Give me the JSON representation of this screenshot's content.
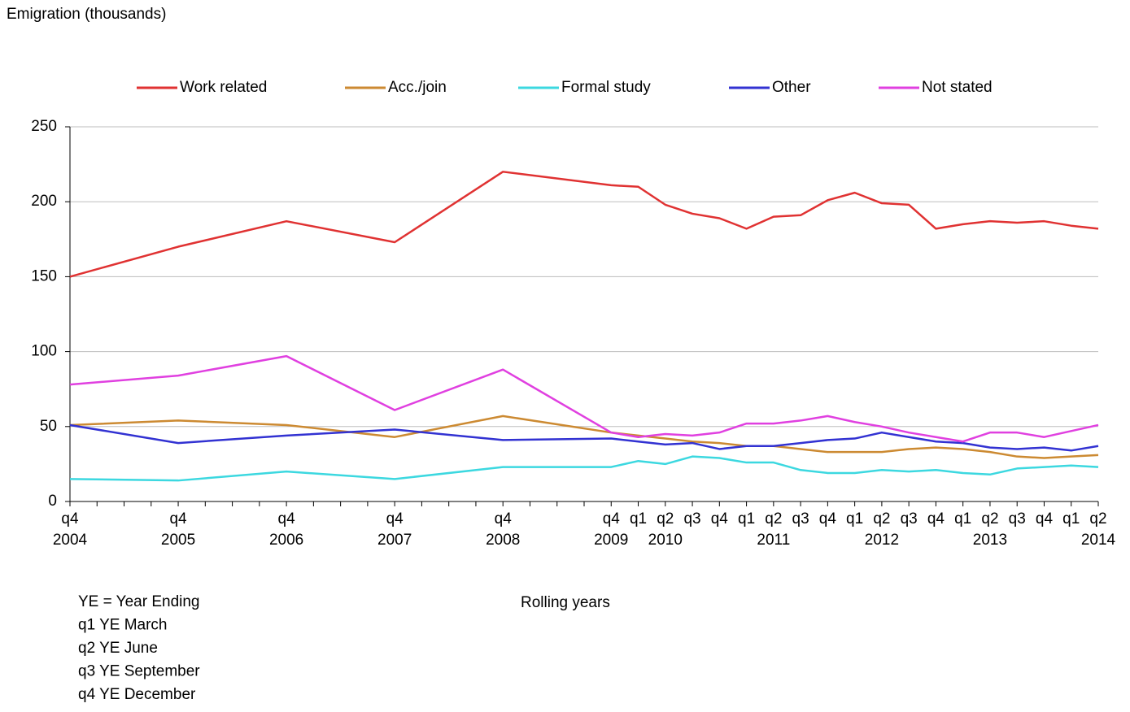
{
  "chart_data": {
    "type": "line",
    "title": "Emigration (thousands)",
    "xlabel": "Rolling years",
    "categories": [
      "q4",
      "q4",
      "q4",
      "q4",
      "q4",
      "q4",
      "q1",
      "q2",
      "q3",
      "q4",
      "q1",
      "q2",
      "q3",
      "q4",
      "q1",
      "q2",
      "q3",
      "q4",
      "q1",
      "q2",
      "q3",
      "q4",
      "q1",
      "q2"
    ],
    "year_labels": [
      "2004",
      "2005",
      "2006",
      "2007",
      "2008",
      "2009",
      null,
      "2010",
      null,
      null,
      null,
      "2011",
      null,
      null,
      null,
      "2012",
      null,
      null,
      null,
      "2013",
      null,
      null,
      null,
      "2014"
    ],
    "series": [
      {
        "name": "Work related",
        "color": "#e03232",
        "values": [
          150,
          170,
          187,
          173,
          220,
          211,
          210,
          198,
          192,
          189,
          182,
          190,
          191,
          201,
          206,
          199,
          198,
          182,
          185,
          187,
          186,
          187,
          184,
          182
        ]
      },
      {
        "name": "Acc./join",
        "color": "#cc8a32",
        "values": [
          51,
          54,
          51,
          43,
          57,
          46,
          44,
          42,
          40,
          39,
          37,
          37,
          35,
          33,
          33,
          33,
          35,
          36,
          35,
          33,
          30,
          29,
          30,
          31
        ]
      },
      {
        "name": "Formal study",
        "color": "#3cd8e0",
        "values": [
          15,
          14,
          20,
          15,
          23,
          23,
          27,
          25,
          30,
          29,
          26,
          26,
          21,
          19,
          19,
          21,
          20,
          21,
          19,
          18,
          22,
          23,
          24,
          23
        ]
      },
      {
        "name": "Other",
        "color": "#3232d2",
        "values": [
          51,
          39,
          44,
          48,
          41,
          42,
          40,
          38,
          39,
          35,
          37,
          37,
          39,
          41,
          42,
          46,
          43,
          40,
          39,
          36,
          35,
          36,
          34,
          37
        ]
      },
      {
        "name": "Not stated",
        "color": "#e040e0",
        "values": [
          78,
          84,
          97,
          61,
          88,
          46,
          43,
          45,
          44,
          46,
          52,
          52,
          54,
          57,
          53,
          50,
          46,
          43,
          40,
          46,
          46,
          43,
          47,
          51
        ]
      }
    ],
    "ylim": [
      0,
      250
    ],
    "yticks": [
      0,
      50,
      100,
      150,
      200,
      250
    ],
    "grid": true,
    "notes": [
      "YE = Year Ending",
      "q1 YE March",
      "q2 YE June",
      "q3 YE September",
      "q4 YE December"
    ]
  }
}
